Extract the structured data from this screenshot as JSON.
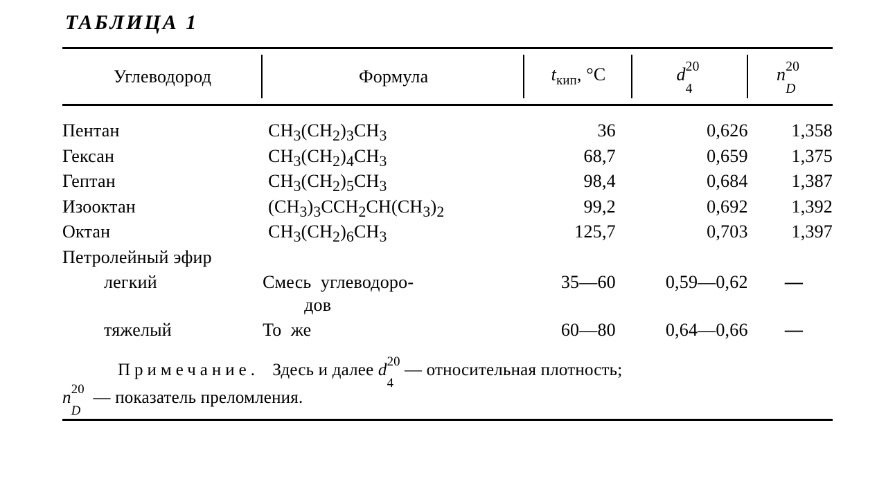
{
  "title": "ТАБЛИЦА 1",
  "columns": {
    "c1": "Углеводород",
    "c2": "Формула",
    "c3_ital": "t",
    "c3_sub": "кип",
    "c3_unit": ", °C",
    "c4_ital": "d",
    "c4_sup": "20",
    "c4_sub": "4",
    "c5_ital": "n",
    "c5_sup": "20",
    "c5_sub": "D"
  },
  "widths": {
    "c1": "26%",
    "c2": "34%",
    "c3": "14%",
    "c4": "15%",
    "c5": "11%"
  },
  "rows": [
    {
      "name": "Пентан",
      "formula_html": "CH<sub>3</sub>(CH<sub>2</sub>)<sub>3</sub>CH<sub>3</sub>",
      "t": "36",
      "d": "0,626",
      "n": "1,358"
    },
    {
      "name": "Гексан",
      "formula_html": "CH<sub>3</sub>(CH<sub>2</sub>)<sub>4</sub>CH<sub>3</sub>",
      "t": "68,7",
      "d": "0,659",
      "n": "1,375"
    },
    {
      "name": "Гептан",
      "formula_html": "CH<sub>3</sub>(CH<sub>2</sub>)<sub>5</sub>CH<sub>3</sub>",
      "t": "98,4",
      "d": "0,684",
      "n": "1,387"
    },
    {
      "name": "Изооктан",
      "formula_html": "(CH<sub>3</sub>)<sub>3</sub>CCH<sub>2</sub>CH(CH<sub>3</sub>)<sub>2</sub>",
      "t": "99,2",
      "d": "0,692",
      "n": "1,392"
    },
    {
      "name": "Октан",
      "formula_html": "CH<sub>3</sub>(CH<sub>2</sub>)<sub>6</sub>CH<sub>3</sub>",
      "t": "125,7",
      "d": "0,703",
      "n": "1,397"
    }
  ],
  "group_header": "Петролейный эфир",
  "group_rows": [
    {
      "name": "легкий",
      "formula_l1": "Смесь  углеводоро-",
      "formula_l2": "дов",
      "t": "35—60",
      "d": "0,59—0,62",
      "n": "—"
    },
    {
      "name": "тяжелый",
      "formula_l1": "То  же",
      "formula_l2": "",
      "t": "60—80",
      "d": "0,64—0,66",
      "n": "—"
    }
  ],
  "note": {
    "lead": "Примечание.",
    "l1a": "Здесь  и  далее ",
    "d_ital": "d",
    "d_sup": "20",
    "d_sub": "4",
    "l1b": "— относительная  плотность;",
    "n_ital": "n",
    "n_sup": "20",
    "n_sub": "D",
    "l2": " — показатель преломления."
  }
}
